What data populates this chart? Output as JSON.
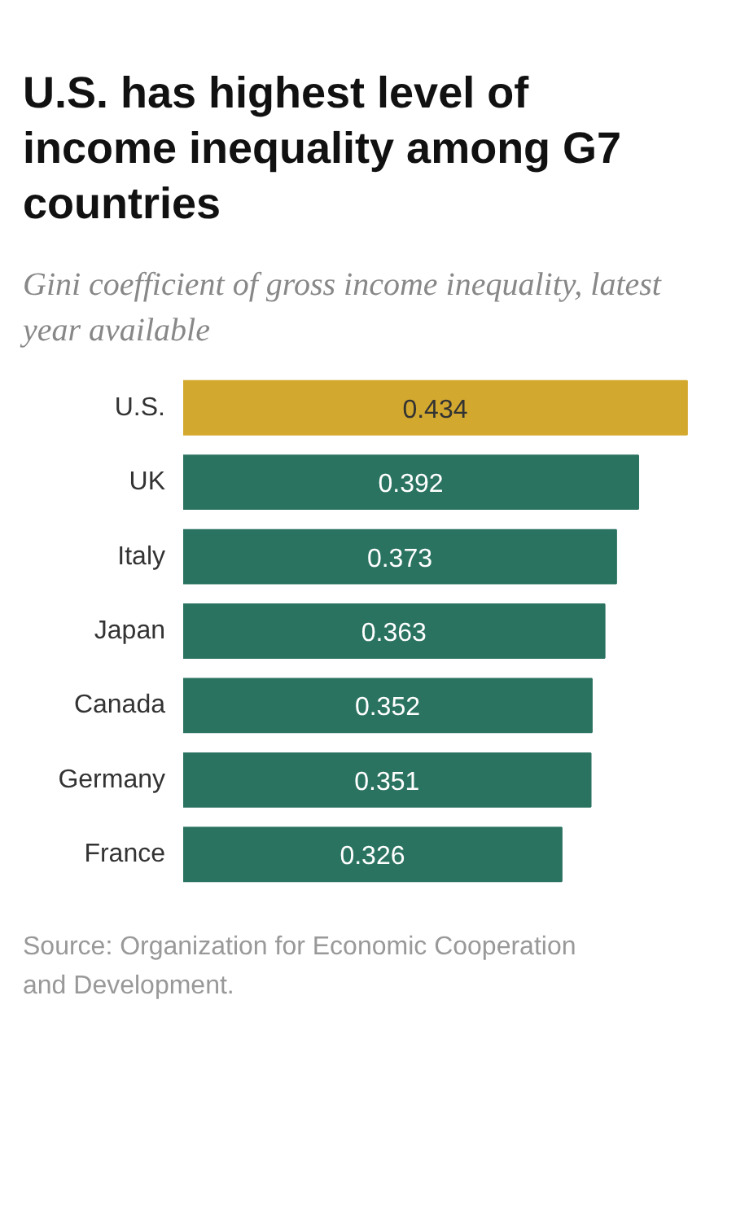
{
  "chart_data": {
    "type": "bar",
    "orientation": "horizontal",
    "title": "U.S. has highest level of income inequality among G7 countries",
    "subtitle": "Gini coefficient of gross income inequality, latest year available",
    "categories": [
      "U.S.",
      "UK",
      "Italy",
      "Japan",
      "Canada",
      "Germany",
      "France"
    ],
    "values": [
      0.434,
      0.392,
      0.373,
      0.363,
      0.352,
      0.351,
      0.326
    ],
    "colors": [
      "#d3a82e",
      "#2b7361",
      "#2b7361",
      "#2b7361",
      "#2b7361",
      "#2b7361",
      "#2b7361"
    ],
    "data_labels": true,
    "annotations": [
      "Source: Organization for Economic Cooperation and Development."
    ]
  }
}
